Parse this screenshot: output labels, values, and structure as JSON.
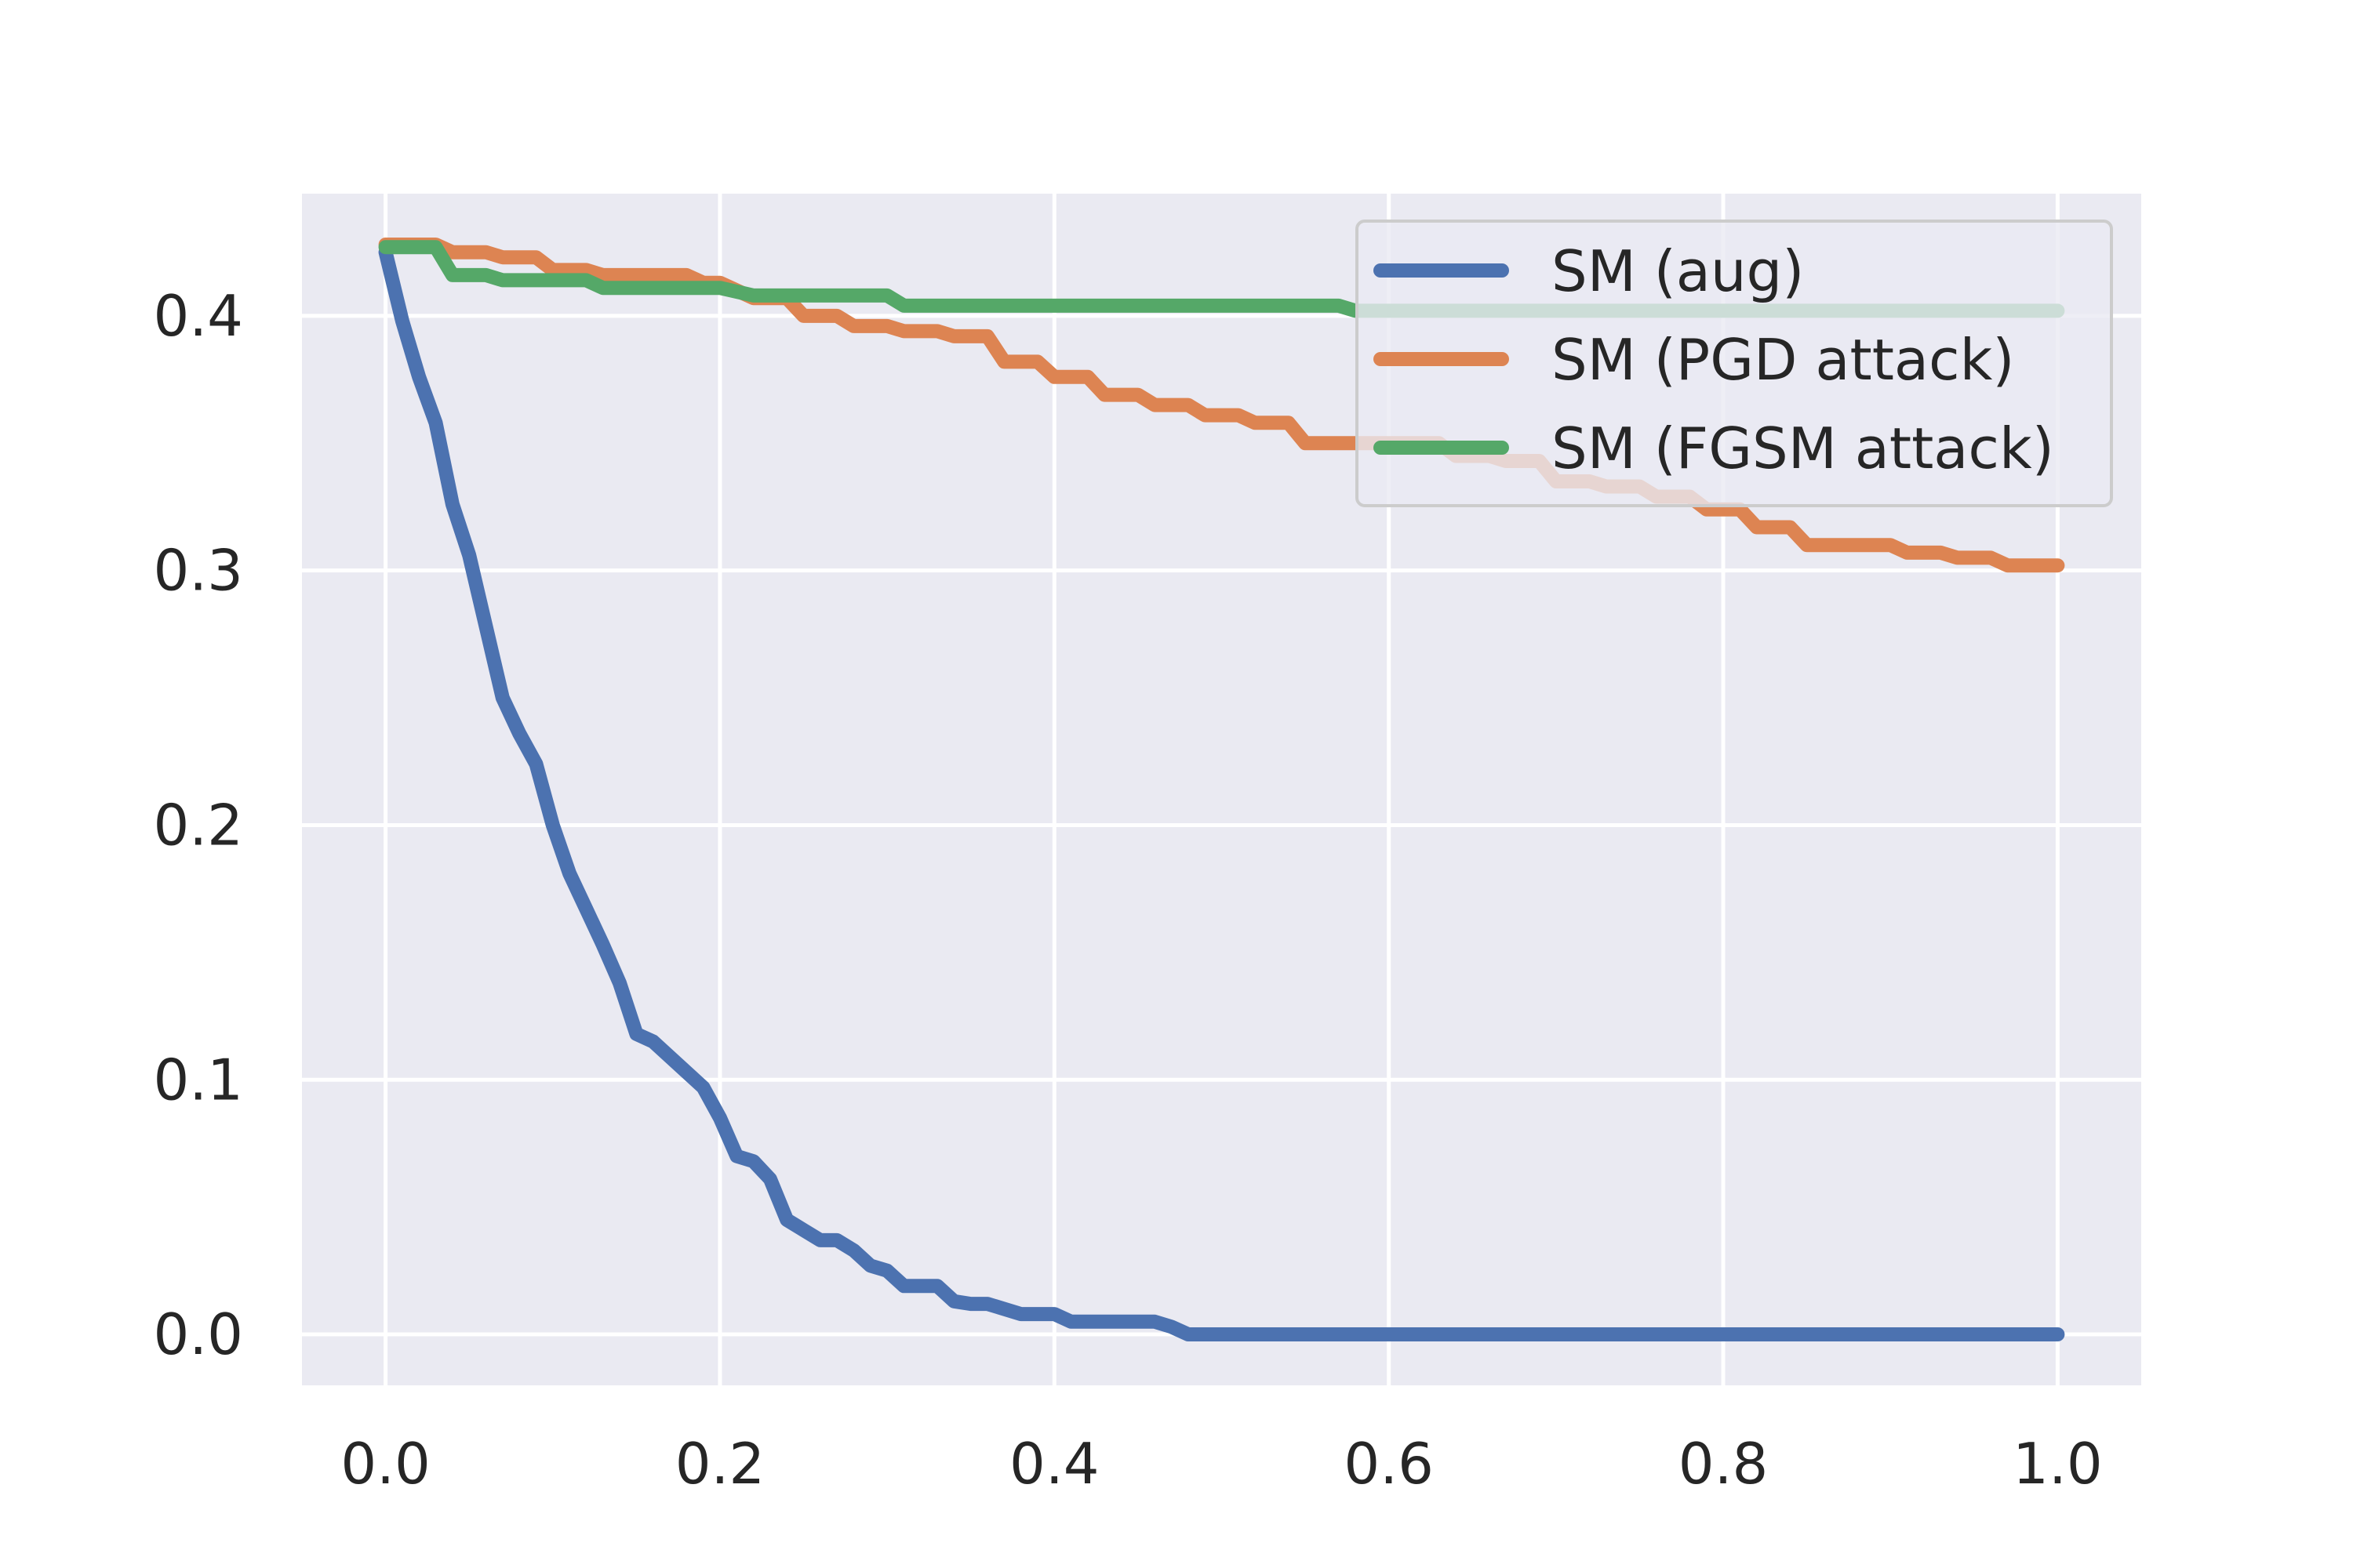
{
  "chart_data": {
    "type": "line",
    "title": "",
    "xlabel": "",
    "ylabel": "",
    "xlim": [
      -0.05,
      1.05
    ],
    "ylim": [
      -0.02,
      0.448
    ],
    "xticks": [
      "0.0",
      "0.2",
      "0.4",
      "0.6",
      "0.8",
      "1.0"
    ],
    "yticks": [
      "0.0",
      "0.1",
      "0.2",
      "0.3",
      "0.4"
    ],
    "grid": true,
    "legend_position": "top-right",
    "series": [
      {
        "name": "SM (aug)",
        "color": "#4c72b0",
        "x": [
          0.0,
          0.01,
          0.02,
          0.03,
          0.04,
          0.05,
          0.06,
          0.07,
          0.08,
          0.09,
          0.1,
          0.11,
          0.12,
          0.13,
          0.14,
          0.15,
          0.16,
          0.17,
          0.18,
          0.19,
          0.2,
          0.21,
          0.22,
          0.23,
          0.24,
          0.25,
          0.26,
          0.27,
          0.28,
          0.29,
          0.3,
          0.31,
          0.32,
          0.33,
          0.34,
          0.35,
          0.36,
          0.37,
          0.38,
          0.39,
          0.4,
          0.41,
          0.42,
          0.43,
          0.44,
          0.45,
          0.46,
          0.47,
          0.48,
          0.49,
          0.5,
          0.6,
          0.7,
          0.8,
          0.9,
          1.0
        ],
        "y": [
          0.425,
          0.398,
          0.376,
          0.358,
          0.326,
          0.306,
          0.278,
          0.25,
          0.236,
          0.224,
          0.2,
          0.181,
          0.167,
          0.153,
          0.138,
          0.118,
          0.115,
          0.109,
          0.103,
          0.097,
          0.085,
          0.07,
          0.068,
          0.061,
          0.045,
          0.041,
          0.037,
          0.037,
          0.033,
          0.027,
          0.025,
          0.019,
          0.019,
          0.019,
          0.013,
          0.012,
          0.012,
          0.01,
          0.008,
          0.008,
          0.008,
          0.005,
          0.005,
          0.005,
          0.005,
          0.005,
          0.005,
          0.003,
          0.0,
          0.0,
          0.0,
          0.0,
          0.0,
          0.0,
          0.0,
          0.0
        ]
      },
      {
        "name": "SM (PGD attack)",
        "color": "#dd8452",
        "x": [
          0.0,
          0.03,
          0.04,
          0.06,
          0.07,
          0.09,
          0.1,
          0.12,
          0.13,
          0.18,
          0.19,
          0.2,
          0.22,
          0.24,
          0.25,
          0.27,
          0.28,
          0.3,
          0.31,
          0.33,
          0.34,
          0.36,
          0.37,
          0.39,
          0.4,
          0.42,
          0.43,
          0.45,
          0.46,
          0.48,
          0.49,
          0.51,
          0.52,
          0.54,
          0.55,
          0.6,
          0.63,
          0.64,
          0.66,
          0.67,
          0.69,
          0.7,
          0.72,
          0.73,
          0.75,
          0.76,
          0.78,
          0.79,
          0.81,
          0.82,
          0.84,
          0.85,
          0.9,
          0.91,
          0.93,
          0.94,
          0.96,
          0.97,
          1.0
        ],
        "y": [
          0.428,
          0.428,
          0.425,
          0.425,
          0.423,
          0.423,
          0.418,
          0.418,
          0.416,
          0.416,
          0.413,
          0.413,
          0.407,
          0.407,
          0.4,
          0.4,
          0.396,
          0.396,
          0.394,
          0.394,
          0.392,
          0.392,
          0.382,
          0.382,
          0.376,
          0.376,
          0.369,
          0.369,
          0.365,
          0.365,
          0.361,
          0.361,
          0.358,
          0.358,
          0.35,
          0.35,
          0.35,
          0.345,
          0.345,
          0.343,
          0.343,
          0.335,
          0.335,
          0.333,
          0.333,
          0.329,
          0.329,
          0.324,
          0.324,
          0.317,
          0.317,
          0.31,
          0.31,
          0.307,
          0.307,
          0.305,
          0.305,
          0.302,
          0.302
        ]
      },
      {
        "name": "SM (FGSM attack)",
        "color": "#55a868",
        "x": [
          0.0,
          0.03,
          0.04,
          0.06,
          0.07,
          0.12,
          0.13,
          0.2,
          0.22,
          0.3,
          0.31,
          0.57,
          0.58,
          1.0
        ],
        "y": [
          0.427,
          0.427,
          0.416,
          0.416,
          0.414,
          0.414,
          0.411,
          0.411,
          0.408,
          0.408,
          0.404,
          0.404,
          0.402,
          0.402
        ]
      }
    ]
  }
}
